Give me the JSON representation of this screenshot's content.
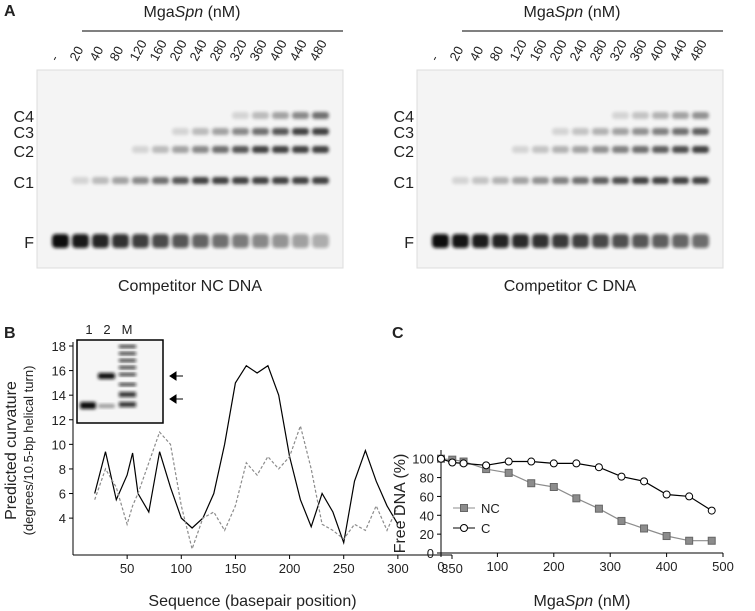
{
  "panel_labels": [
    "A",
    "B",
    "C"
  ],
  "gels": [
    {
      "title_parts": [
        "Mga",
        "Spn",
        " (nM)"
      ],
      "lanes": [
        "-",
        "20",
        "40",
        "80",
        "120",
        "160",
        "200",
        "240",
        "280",
        "320",
        "360",
        "400",
        "440",
        "480"
      ],
      "band_labels": [
        "C4",
        "C3",
        "C2",
        "C1",
        "F"
      ],
      "caption": "Competitor NC DNA"
    },
    {
      "title_parts": [
        "Mga",
        "Spn",
        " (nM)"
      ],
      "lanes": [
        "-",
        "20",
        "40",
        "80",
        "120",
        "160",
        "200",
        "240",
        "280",
        "320",
        "360",
        "400",
        "440",
        "480"
      ],
      "band_labels": [
        "C4",
        "C3",
        "C2",
        "C1",
        "F"
      ],
      "caption": "Competitor C DNA"
    }
  ],
  "inset": {
    "lanes": [
      "1",
      "2",
      "M"
    ]
  },
  "chart_data": [
    {
      "type": "line",
      "xlabel": "Sequence (basepair position)",
      "ylabel": [
        "Predicted curvature",
        "(degrees/10.5-bp helical turn)"
      ],
      "x": [
        20,
        30,
        40,
        50,
        55,
        60,
        70,
        80,
        90,
        100,
        110,
        120,
        130,
        140,
        150,
        160,
        170,
        180,
        190,
        200,
        210,
        220,
        230,
        240,
        250,
        260,
        270,
        280,
        290,
        300
      ],
      "series": [
        {
          "color": "#000000",
          "dash": "solid",
          "values": [
            6,
            9.4,
            5.5,
            7.5,
            9.3,
            6,
            4.5,
            9.4,
            6.5,
            4,
            3.2,
            4,
            6,
            10,
            15,
            16.4,
            15.8,
            16.4,
            14,
            9,
            5.5,
            3.3,
            6,
            4.5,
            2,
            7,
            9.5,
            7,
            5,
            3.5
          ]
        },
        {
          "color": "#8c8c8c",
          "dash": "dashed",
          "values": [
            5.5,
            8,
            6.5,
            3.5,
            5,
            6,
            8.5,
            11,
            10,
            5,
            1.5,
            4,
            4.5,
            3,
            5,
            8.5,
            7.5,
            9,
            8,
            9,
            11.5,
            8,
            3.5,
            3,
            2.3,
            3.5,
            3,
            5,
            3,
            5
          ]
        }
      ],
      "xlim": [
        0,
        350
      ],
      "xticks": [
        50,
        100,
        150,
        200,
        250,
        300,
        350
      ],
      "ylim": [
        1,
        18
      ],
      "yticks": [
        4,
        6,
        8,
        10,
        12,
        14,
        16,
        18
      ]
    },
    {
      "type": "line",
      "xlabel_parts": [
        "Mga",
        "Spn",
        " (nM)"
      ],
      "ylabel": "Free DNA (%)",
      "x": [
        0,
        20,
        40,
        80,
        120,
        160,
        200,
        240,
        280,
        320,
        360,
        400,
        440,
        480
      ],
      "series": [
        {
          "name": "NC",
          "color": "#8c8c8c",
          "marker": "square",
          "values": [
            100,
            99,
            97,
            89,
            85,
            74,
            70,
            58,
            47,
            34,
            26,
            18,
            13,
            13
          ]
        },
        {
          "name": "C",
          "color": "#000000",
          "marker": "circle",
          "values": [
            100,
            96,
            95,
            93,
            97,
            97,
            95,
            95,
            91,
            81,
            76,
            62,
            60,
            45
          ]
        }
      ],
      "xlim": [
        0,
        500
      ],
      "xticks": [
        0,
        100,
        200,
        300,
        400,
        500
      ],
      "ylim": [
        0,
        105
      ],
      "yticks": [
        0,
        20,
        40,
        60,
        80,
        100
      ],
      "legend": "lower left"
    }
  ]
}
